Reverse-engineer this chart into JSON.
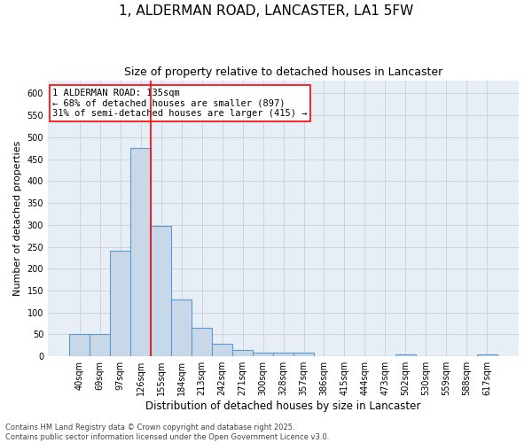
{
  "title": "1, ALDERMAN ROAD, LANCASTER, LA1 5FW",
  "subtitle": "Size of property relative to detached houses in Lancaster",
  "xlabel": "Distribution of detached houses by size in Lancaster",
  "ylabel": "Number of detached properties",
  "categories": [
    "40sqm",
    "69sqm",
    "97sqm",
    "126sqm",
    "155sqm",
    "184sqm",
    "213sqm",
    "242sqm",
    "271sqm",
    "300sqm",
    "328sqm",
    "357sqm",
    "386sqm",
    "415sqm",
    "444sqm",
    "473sqm",
    "502sqm",
    "530sqm",
    "559sqm",
    "588sqm",
    "617sqm"
  ],
  "values": [
    50,
    50,
    240,
    475,
    298,
    130,
    65,
    28,
    15,
    8,
    9,
    8,
    0,
    0,
    0,
    0,
    5,
    0,
    0,
    0,
    4
  ],
  "bar_color": "#c8d8e8",
  "bar_edge_color": "#5b9bd5",
  "grid_color": "#c8d0dc",
  "background_color": "#e8eef5",
  "annotation_text_line1": "1 ALDERMAN ROAD: 135sqm",
  "annotation_text_line2": "← 68% of detached houses are smaller (897)",
  "annotation_text_line3": "31% of semi-detached houses are larger (415) →",
  "annotation_box_color": "white",
  "annotation_box_edge_color": "red",
  "vline_color": "red",
  "vline_x": 3.5,
  "ylim": [
    0,
    630
  ],
  "yticks": [
    0,
    50,
    100,
    150,
    200,
    250,
    300,
    350,
    400,
    450,
    500,
    550,
    600
  ],
  "footer_line1": "Contains HM Land Registry data © Crown copyright and database right 2025.",
  "footer_line2": "Contains public sector information licensed under the Open Government Licence v3.0.",
  "title_fontsize": 11,
  "subtitle_fontsize": 9,
  "xlabel_fontsize": 8.5,
  "ylabel_fontsize": 8,
  "tick_fontsize": 7,
  "annotation_fontsize": 7.5,
  "footer_fontsize": 6
}
